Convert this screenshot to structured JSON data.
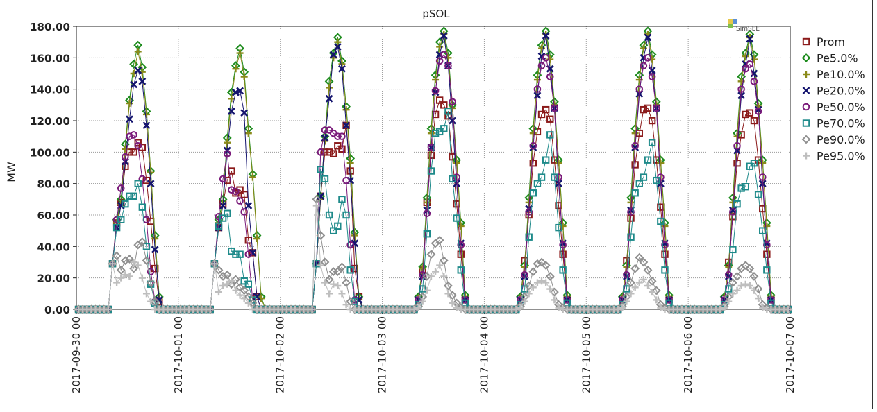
{
  "chart_data": {
    "type": "line",
    "title": "pSOL",
    "xlabel": "",
    "ylabel": "MW",
    "logo_text": "SimSEE",
    "ylim": [
      0,
      180
    ],
    "yticks": [
      "0.00",
      "20.00",
      "40.00",
      "60.00",
      "80.00",
      "100.00",
      "120.00",
      "140.00",
      "160.00",
      "180.00"
    ],
    "xticks": [
      "2017-09-30 00",
      "2017-10-01 00",
      "2017-10-02 00",
      "2017-10-03 00",
      "2017-10-04 00",
      "2017-10-05 00",
      "2017-10-06 00",
      "2017-10-07 00"
    ],
    "x_unit": "hours from 2017-09-30 00",
    "grid": true,
    "legend_position": "right",
    "days": 7,
    "day_hours": [
      7,
      8,
      9,
      10,
      11,
      12,
      13,
      14,
      15,
      16,
      17,
      18,
      19
    ],
    "series": [
      {
        "name": "Prom",
        "color": "#8B1A1A",
        "marker": "square",
        "days": [
          [
            0,
            29,
            55,
            68,
            91,
            100,
            100,
            106,
            103,
            82,
            56,
            26,
            5
          ],
          [
            0,
            29,
            52,
            67,
            82,
            88,
            74,
            76,
            73,
            44,
            36,
            8,
            0
          ],
          [
            0,
            29,
            72,
            100,
            100,
            99,
            104,
            102,
            117,
            88,
            26,
            8,
            0
          ],
          [
            0,
            7,
            25,
            68,
            98,
            124,
            133,
            130,
            123,
            97,
            67,
            35,
            6
          ],
          [
            0,
            7,
            31,
            60,
            93,
            113,
            124,
            127,
            121,
            95,
            66,
            35,
            6
          ],
          [
            0,
            7,
            31,
            58,
            92,
            112,
            127,
            128,
            120,
            95,
            65,
            35,
            6
          ],
          [
            0,
            7,
            30,
            59,
            93,
            111,
            124,
            125,
            120,
            95,
            64,
            35,
            6
          ]
        ]
      },
      {
        "name": "Pe5.0%",
        "color": "#1E8C1E",
        "marker": "diamond",
        "days": [
          [
            0,
            29,
            57,
            70,
            105,
            133,
            156,
            168,
            154,
            126,
            88,
            47,
            8
          ],
          [
            0,
            29,
            57,
            70,
            109,
            138,
            155,
            166,
            151,
            115,
            86,
            47,
            8
          ],
          [
            0,
            29,
            72,
            110,
            145,
            163,
            173,
            158,
            129,
            96,
            49,
            8,
            0
          ],
          [
            0,
            8,
            27,
            71,
            115,
            149,
            170,
            177,
            163,
            130,
            95,
            55,
            9
          ],
          [
            0,
            8,
            28,
            71,
            115,
            149,
            168,
            177,
            162,
            132,
            95,
            55,
            9
          ],
          [
            0,
            8,
            28,
            71,
            115,
            149,
            168,
            177,
            162,
            132,
            95,
            55,
            9
          ],
          [
            0,
            8,
            28,
            71,
            112,
            148,
            163,
            175,
            162,
            131,
            95,
            55,
            9
          ]
        ]
      },
      {
        "name": "Pe10.0%",
        "color": "#8A8A1A",
        "marker": "plus",
        "days": [
          [
            0,
            29,
            55,
            67,
            102,
            131,
            150,
            164,
            151,
            124,
            87,
            45,
            7
          ],
          [
            0,
            29,
            55,
            67,
            106,
            134,
            153,
            163,
            148,
            112,
            84,
            45,
            7
          ],
          [
            0,
            29,
            70,
            107,
            141,
            160,
            170,
            156,
            127,
            93,
            47,
            7,
            0
          ],
          [
            0,
            7,
            26,
            68,
            112,
            146,
            167,
            175,
            160,
            128,
            93,
            53,
            8
          ],
          [
            0,
            7,
            27,
            68,
            112,
            146,
            166,
            175,
            159,
            130,
            93,
            53,
            8
          ],
          [
            0,
            7,
            27,
            68,
            112,
            146,
            166,
            175,
            159,
            130,
            93,
            53,
            8
          ],
          [
            0,
            7,
            27,
            68,
            110,
            145,
            161,
            173,
            159,
            129,
            93,
            53,
            8
          ]
        ]
      },
      {
        "name": "Pe20.0%",
        "color": "#14146E",
        "marker": "x",
        "days": [
          [
            0,
            29,
            52,
            66,
            94,
            121,
            143,
            152,
            145,
            117,
            80,
            38,
            6
          ],
          [
            0,
            29,
            52,
            66,
            101,
            126,
            138,
            139,
            125,
            66,
            36,
            8,
            0
          ],
          [
            0,
            29,
            72,
            109,
            134,
            162,
            167,
            153,
            117,
            82,
            42,
            6,
            0
          ],
          [
            0,
            6,
            21,
            63,
            103,
            138,
            162,
            174,
            155,
            120,
            80,
            42,
            6
          ],
          [
            0,
            6,
            21,
            64,
            103,
            136,
            161,
            174,
            153,
            128,
            80,
            42,
            6
          ],
          [
            0,
            6,
            21,
            63,
            103,
            137,
            160,
            173,
            152,
            128,
            80,
            42,
            6
          ],
          [
            0,
            6,
            21,
            63,
            101,
            136,
            156,
            172,
            150,
            127,
            80,
            42,
            6
          ]
        ]
      },
      {
        "name": "Pe50.0%",
        "color": "#7A1A7A",
        "marker": "circle",
        "days": [
          [
            0,
            29,
            57,
            77,
            97,
            110,
            111,
            104,
            83,
            57,
            24,
            5,
            0
          ],
          [
            0,
            29,
            59,
            83,
            99,
            76,
            75,
            69,
            62,
            35,
            6,
            0,
            0
          ],
          [
            0,
            29,
            100,
            114,
            114,
            112,
            110,
            110,
            82,
            41,
            6,
            0,
            0
          ],
          [
            0,
            6,
            22,
            61,
            103,
            139,
            158,
            162,
            155,
            132,
            84,
            41,
            6
          ],
          [
            0,
            6,
            22,
            62,
            104,
            140,
            155,
            160,
            148,
            128,
            84,
            41,
            6
          ],
          [
            0,
            6,
            22,
            62,
            104,
            140,
            155,
            160,
            148,
            128,
            84,
            41,
            6
          ],
          [
            0,
            6,
            22,
            62,
            104,
            140,
            153,
            156,
            145,
            126,
            84,
            41,
            6
          ]
        ]
      },
      {
        "name": "Pe70.0%",
        "color": "#1E8A8A",
        "marker": "square",
        "days": [
          [
            0,
            29,
            52,
            57,
            67,
            72,
            72,
            80,
            65,
            40,
            16,
            4,
            0
          ],
          [
            0,
            29,
            53,
            58,
            61,
            37,
            35,
            35,
            18,
            16,
            6,
            0,
            0
          ],
          [
            0,
            29,
            89,
            83,
            60,
            50,
            53,
            70,
            60,
            25,
            5,
            0,
            0
          ],
          [
            0,
            3,
            13,
            48,
            88,
            112,
            113,
            115,
            126,
            83,
            58,
            25,
            4
          ],
          [
            0,
            3,
            13,
            46,
            74,
            80,
            84,
            95,
            111,
            84,
            52,
            25,
            4
          ],
          [
            0,
            3,
            13,
            46,
            74,
            80,
            84,
            95,
            106,
            82,
            56,
            25,
            4
          ],
          [
            0,
            3,
            13,
            38,
            67,
            77,
            78,
            91,
            93,
            73,
            50,
            25,
            4
          ]
        ]
      },
      {
        "name": "Pe90.0%",
        "color": "#8F8F8F",
        "marker": "diamond",
        "days": [
          [
            0,
            29,
            34,
            25,
            31,
            32,
            26,
            41,
            43,
            31,
            17,
            5,
            0
          ],
          [
            0,
            29,
            25,
            21,
            22,
            16,
            19,
            14,
            12,
            8,
            4,
            0,
            0
          ],
          [
            0,
            70,
            47,
            30,
            19,
            24,
            24,
            27,
            17,
            5,
            0,
            0,
            0
          ],
          [
            0,
            2,
            8,
            21,
            35,
            42,
            44,
            31,
            15,
            9,
            4,
            1,
            0
          ],
          [
            0,
            2,
            8,
            15,
            24,
            29,
            30,
            28,
            21,
            11,
            3,
            1,
            0
          ],
          [
            0,
            2,
            8,
            17,
            26,
            33,
            30,
            25,
            18,
            12,
            3,
            1,
            0
          ],
          [
            0,
            2,
            8,
            17,
            21,
            26,
            28,
            26,
            21,
            13,
            3,
            1,
            0
          ]
        ]
      },
      {
        "name": "Pe95.0%",
        "color": "#BEBEBE",
        "marker": "plus",
        "days": [
          [
            0,
            29,
            17,
            20,
            22,
            21,
            30,
            28,
            20,
            10,
            5,
            0,
            0
          ],
          [
            0,
            29,
            11,
            15,
            16,
            18,
            12,
            9,
            7,
            4,
            0,
            0,
            0
          ],
          [
            0,
            66,
            28,
            17,
            10,
            16,
            15,
            10,
            3,
            0,
            0,
            0,
            0
          ],
          [
            0,
            1,
            5,
            12,
            21,
            24,
            28,
            21,
            10,
            4,
            1,
            0,
            0
          ],
          [
            0,
            1,
            5,
            10,
            14,
            17,
            18,
            17,
            13,
            6,
            1,
            0,
            0
          ],
          [
            0,
            1,
            5,
            10,
            14,
            17,
            19,
            15,
            11,
            6,
            1,
            0,
            0
          ],
          [
            0,
            1,
            5,
            10,
            12,
            15,
            16,
            15,
            12,
            7,
            1,
            0,
            0
          ]
        ]
      }
    ]
  }
}
